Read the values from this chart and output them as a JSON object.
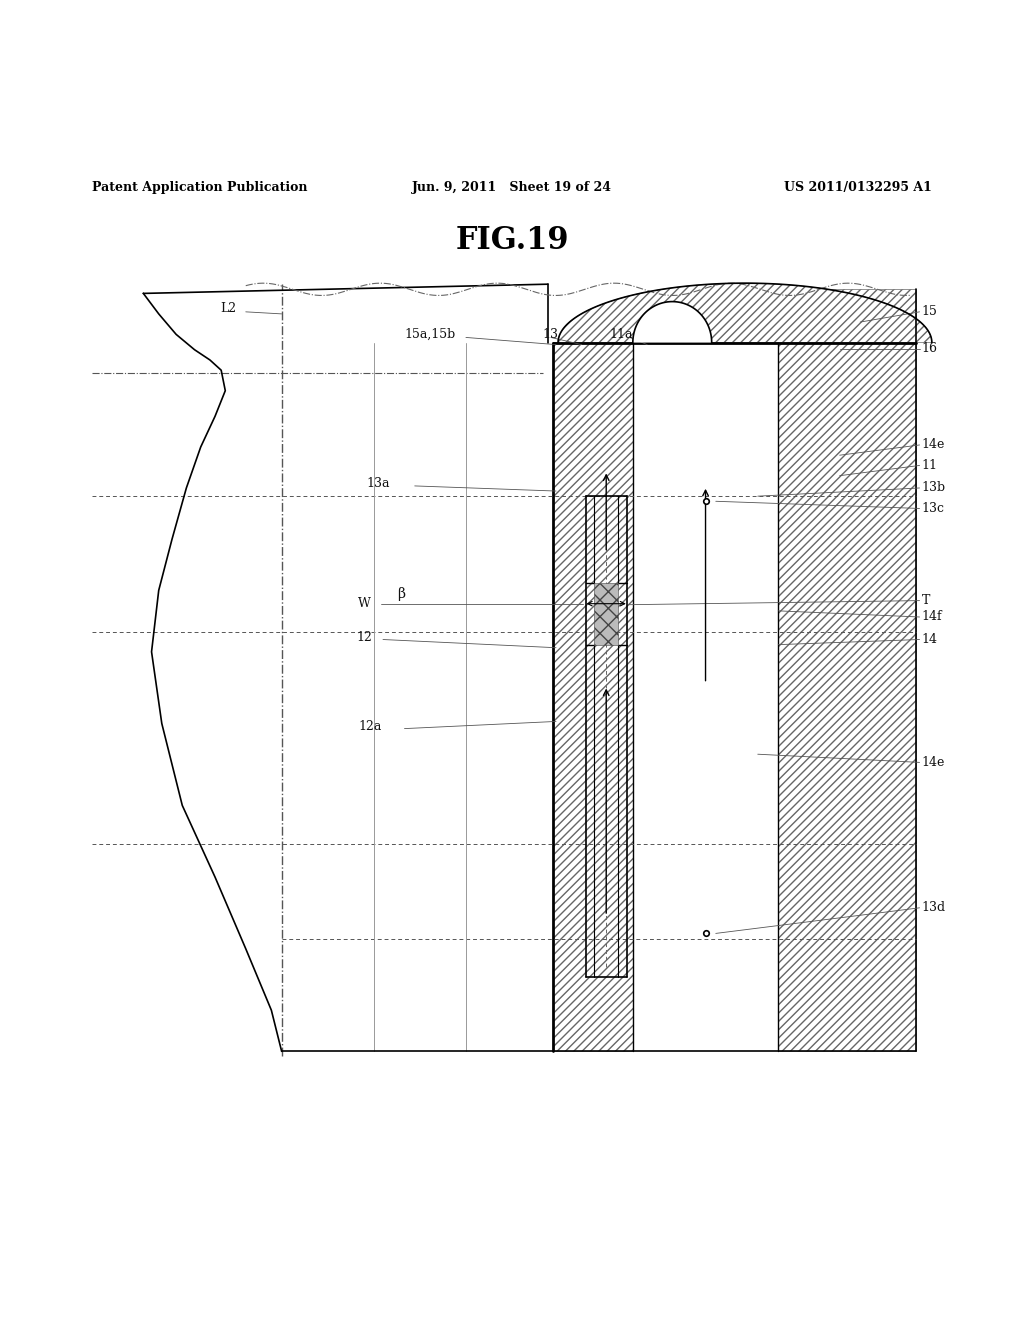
{
  "bg_color": "#ffffff",
  "line_color": "#000000",
  "header_left": "Patent Application Publication",
  "header_center": "Jun. 9, 2011   Sheet 19 of 24",
  "header_right": "US 2011/0132295 A1",
  "figure_title": "FIG.19"
}
